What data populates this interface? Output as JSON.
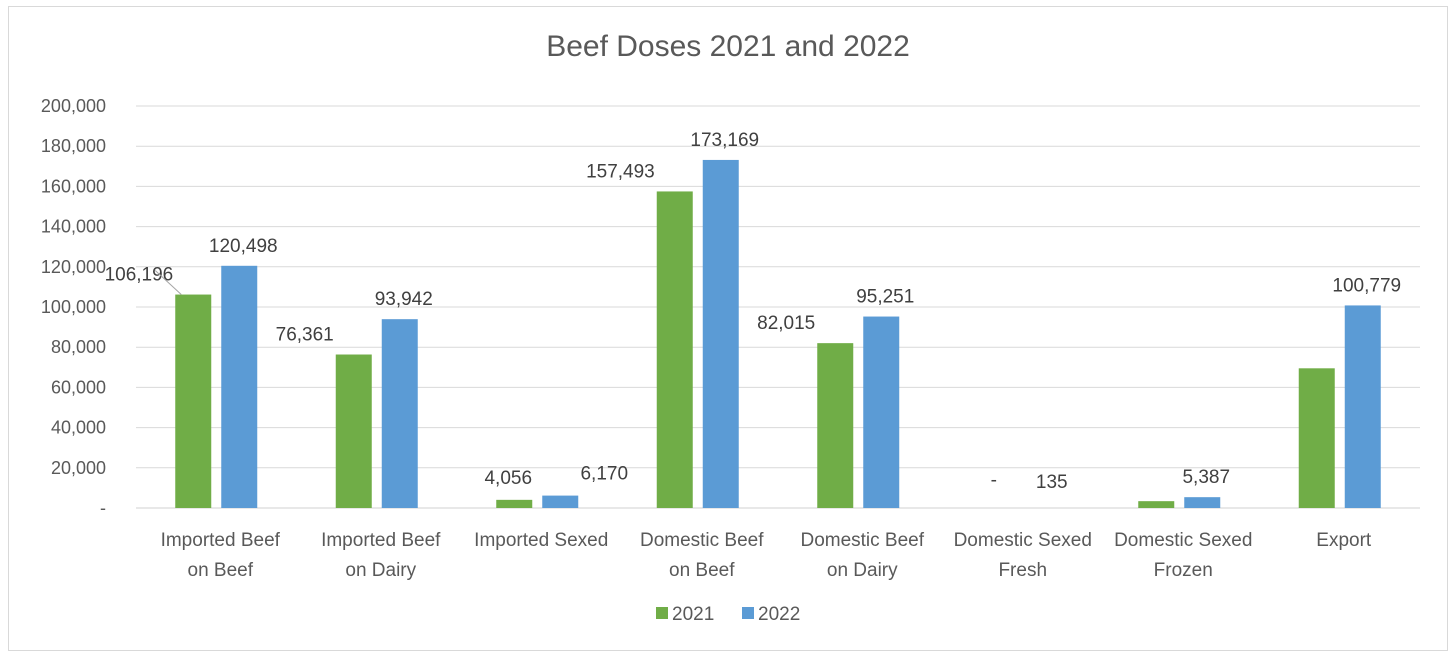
{
  "chart_data": {
    "type": "bar",
    "title": "Beef Doses 2021 and 2022",
    "categories": [
      [
        "Imported Beef",
        "on Beef"
      ],
      [
        "Imported Beef",
        "on Dairy"
      ],
      [
        "Imported Sexed"
      ],
      [
        "Domestic Beef",
        "on Beef"
      ],
      [
        "Domestic Beef",
        "on Dairy"
      ],
      [
        "Domestic Sexed",
        "Fresh"
      ],
      [
        "Domestic Sexed",
        "Frozen"
      ],
      [
        "Export"
      ]
    ],
    "series": [
      {
        "name": "2021",
        "color": "#70ad47",
        "values": [
          106196,
          76361,
          4056,
          157493,
          82015,
          0,
          3400,
          69500
        ],
        "labels": [
          "106,196",
          "76,361",
          "4,056",
          "157,493",
          "82,015",
          "-",
          "",
          ""
        ]
      },
      {
        "name": "2022",
        "color": "#5b9bd5",
        "values": [
          120498,
          93942,
          6170,
          173169,
          95251,
          135,
          5387,
          100779
        ],
        "labels": [
          "120,498",
          "93,942",
          "6,170",
          "173,169",
          "95,251",
          "135",
          "5,387",
          "100,779"
        ]
      }
    ],
    "ylim": [
      0,
      200000
    ],
    "yticks": [
      "-",
      "20,000",
      "40,000",
      "60,000",
      "80,000",
      "100,000",
      "120,000",
      "140,000",
      "160,000",
      "180,000",
      "200,000"
    ],
    "grid": true,
    "legend_position": "bottom"
  }
}
